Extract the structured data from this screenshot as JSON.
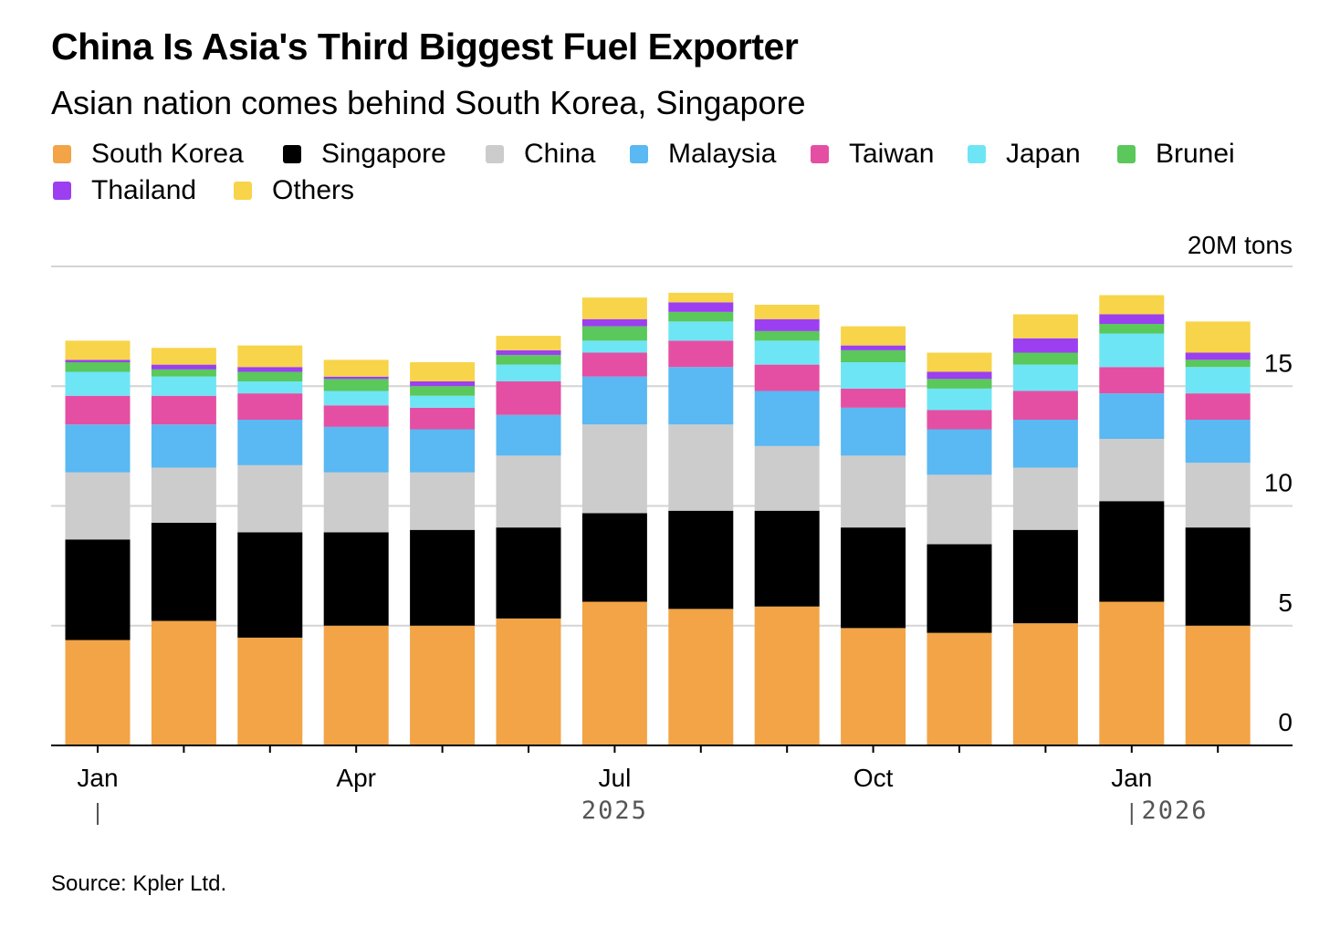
{
  "title": "China Is Asia's Third Biggest Fuel Exporter",
  "subtitle": "Asian nation comes behind South Korea, Singapore",
  "source": "Source: Kpler Ltd.",
  "chart_data": {
    "type": "bar",
    "stacked": true,
    "unit_label": "20M tons",
    "x_tick_labels": [
      "Jan",
      "Apr",
      "Jul",
      "Oct",
      "Jan"
    ],
    "x_tick_positions": [
      0,
      3,
      6,
      9,
      12
    ],
    "year_labels": [
      {
        "text": "2025",
        "at": 6
      },
      {
        "text": "2026",
        "at": 12.5
      }
    ],
    "y_ticks": [
      0,
      5,
      10,
      15
    ],
    "ylim": [
      0,
      20
    ],
    "grid": true,
    "legend_position": "top",
    "categories": [
      "Jan 2025",
      "Feb 2025",
      "Mar 2025",
      "Apr 2025",
      "May 2025",
      "Jun 2025",
      "Jul 2025",
      "Aug 2025",
      "Sep 2025",
      "Oct 2025",
      "Nov 2025",
      "Dec 2025",
      "Jan 2026",
      "Feb 2026"
    ],
    "series": [
      {
        "name": "South Korea",
        "color": "#f2a447",
        "values": [
          4.4,
          5.2,
          4.5,
          5.0,
          5.0,
          5.3,
          6.0,
          5.7,
          5.8,
          4.9,
          4.7,
          5.1,
          6.0,
          5.0
        ]
      },
      {
        "name": "Singapore",
        "color": "#000000",
        "values": [
          4.2,
          4.1,
          4.4,
          3.9,
          4.0,
          3.8,
          3.7,
          4.1,
          4.0,
          4.2,
          3.7,
          3.9,
          4.2,
          4.1
        ]
      },
      {
        "name": "China",
        "color": "#cccccc",
        "values": [
          2.8,
          2.3,
          2.8,
          2.5,
          2.4,
          3.0,
          3.7,
          3.6,
          2.7,
          3.0,
          2.9,
          2.6,
          2.6,
          2.7
        ]
      },
      {
        "name": "Malaysia",
        "color": "#5ab8f2",
        "values": [
          2.0,
          1.8,
          1.9,
          1.9,
          1.8,
          1.7,
          2.0,
          2.4,
          2.3,
          2.0,
          1.9,
          2.0,
          1.9,
          1.8
        ]
      },
      {
        "name": "Taiwan",
        "color": "#e44fa4",
        "values": [
          1.2,
          1.2,
          1.1,
          0.9,
          0.9,
          1.4,
          1.0,
          1.1,
          1.1,
          0.8,
          0.8,
          1.2,
          1.1,
          1.1
        ]
      },
      {
        "name": "Japan",
        "color": "#6ee5f5",
        "values": [
          1.0,
          0.8,
          0.5,
          0.6,
          0.5,
          0.7,
          0.5,
          0.8,
          1.0,
          1.1,
          0.9,
          1.1,
          1.4,
          1.1
        ]
      },
      {
        "name": "Brunei",
        "color": "#5ac85a",
        "values": [
          0.4,
          0.3,
          0.4,
          0.5,
          0.4,
          0.4,
          0.6,
          0.4,
          0.4,
          0.5,
          0.4,
          0.5,
          0.4,
          0.3
        ]
      },
      {
        "name": "Thailand",
        "color": "#9b3ff0",
        "values": [
          0.1,
          0.2,
          0.2,
          0.1,
          0.2,
          0.2,
          0.3,
          0.4,
          0.5,
          0.2,
          0.3,
          0.6,
          0.4,
          0.3
        ]
      },
      {
        "name": "Others",
        "color": "#f7d44a",
        "values": [
          0.8,
          0.7,
          0.9,
          0.7,
          0.8,
          0.6,
          0.9,
          0.4,
          0.6,
          0.8,
          0.8,
          1.0,
          0.8,
          1.3
        ]
      }
    ]
  }
}
